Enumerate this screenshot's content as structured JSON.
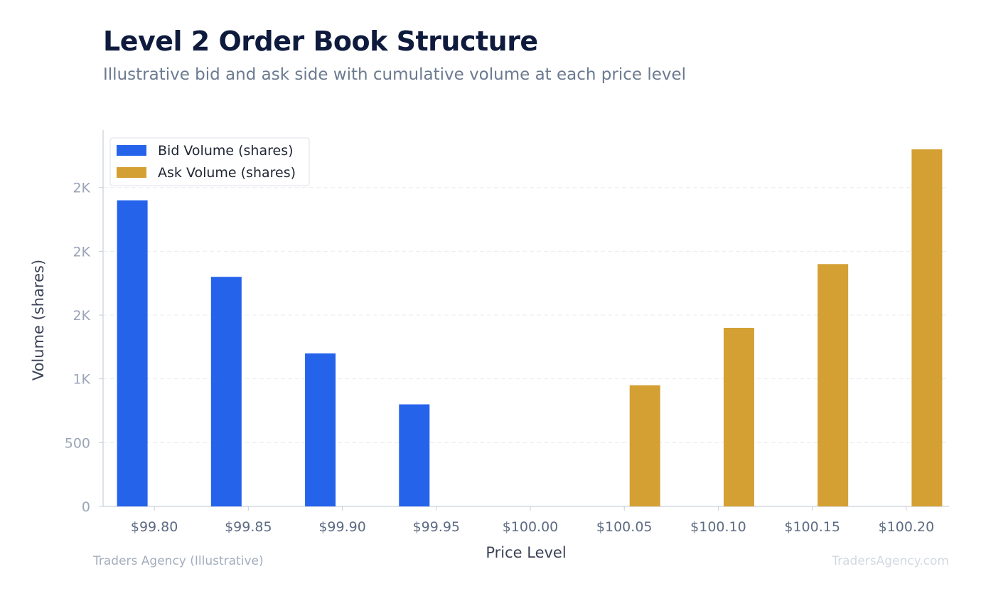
{
  "title": "Level 2 Order Book Structure",
  "subtitle": "Illustrative bid and ask side with cumulative volume at each price level",
  "footer": {
    "left": "Traders Agency (Illustrative)",
    "right": "TradersAgency.com"
  },
  "colors": {
    "bid": "#2563eb",
    "ask": "#d4a033",
    "axis_text": "#9aa5b8",
    "label_text": "#3b4256",
    "tick_label": "#5d6b82",
    "grid": "#e8ebf0",
    "axis_line": "#c9cfd9"
  },
  "chart_data": {
    "type": "bar",
    "categories": [
      "$99.80",
      "$99.85",
      "$99.90",
      "$99.95",
      "$100.00",
      "$100.05",
      "$100.10",
      "$100.15",
      "$100.20"
    ],
    "series": [
      {
        "name": "Bid Volume (shares)",
        "values": [
          2400,
          1800,
          1200,
          800,
          0,
          0,
          0,
          0,
          0
        ]
      },
      {
        "name": "Ask Volume (shares)",
        "values": [
          0,
          0,
          0,
          0,
          0,
          950,
          1400,
          1900,
          2800
        ]
      }
    ],
    "xlabel": "Price Level",
    "ylabel": "Volume (shares)",
    "ylim": [
      0,
      2950
    ],
    "yticks": [
      0,
      500,
      1000,
      1500,
      2000,
      2500
    ],
    "ytick_labels": [
      "0",
      "500",
      "1K",
      "2K",
      "2K",
      "2K"
    ],
    "grid": true,
    "legend_position": "top-left"
  }
}
